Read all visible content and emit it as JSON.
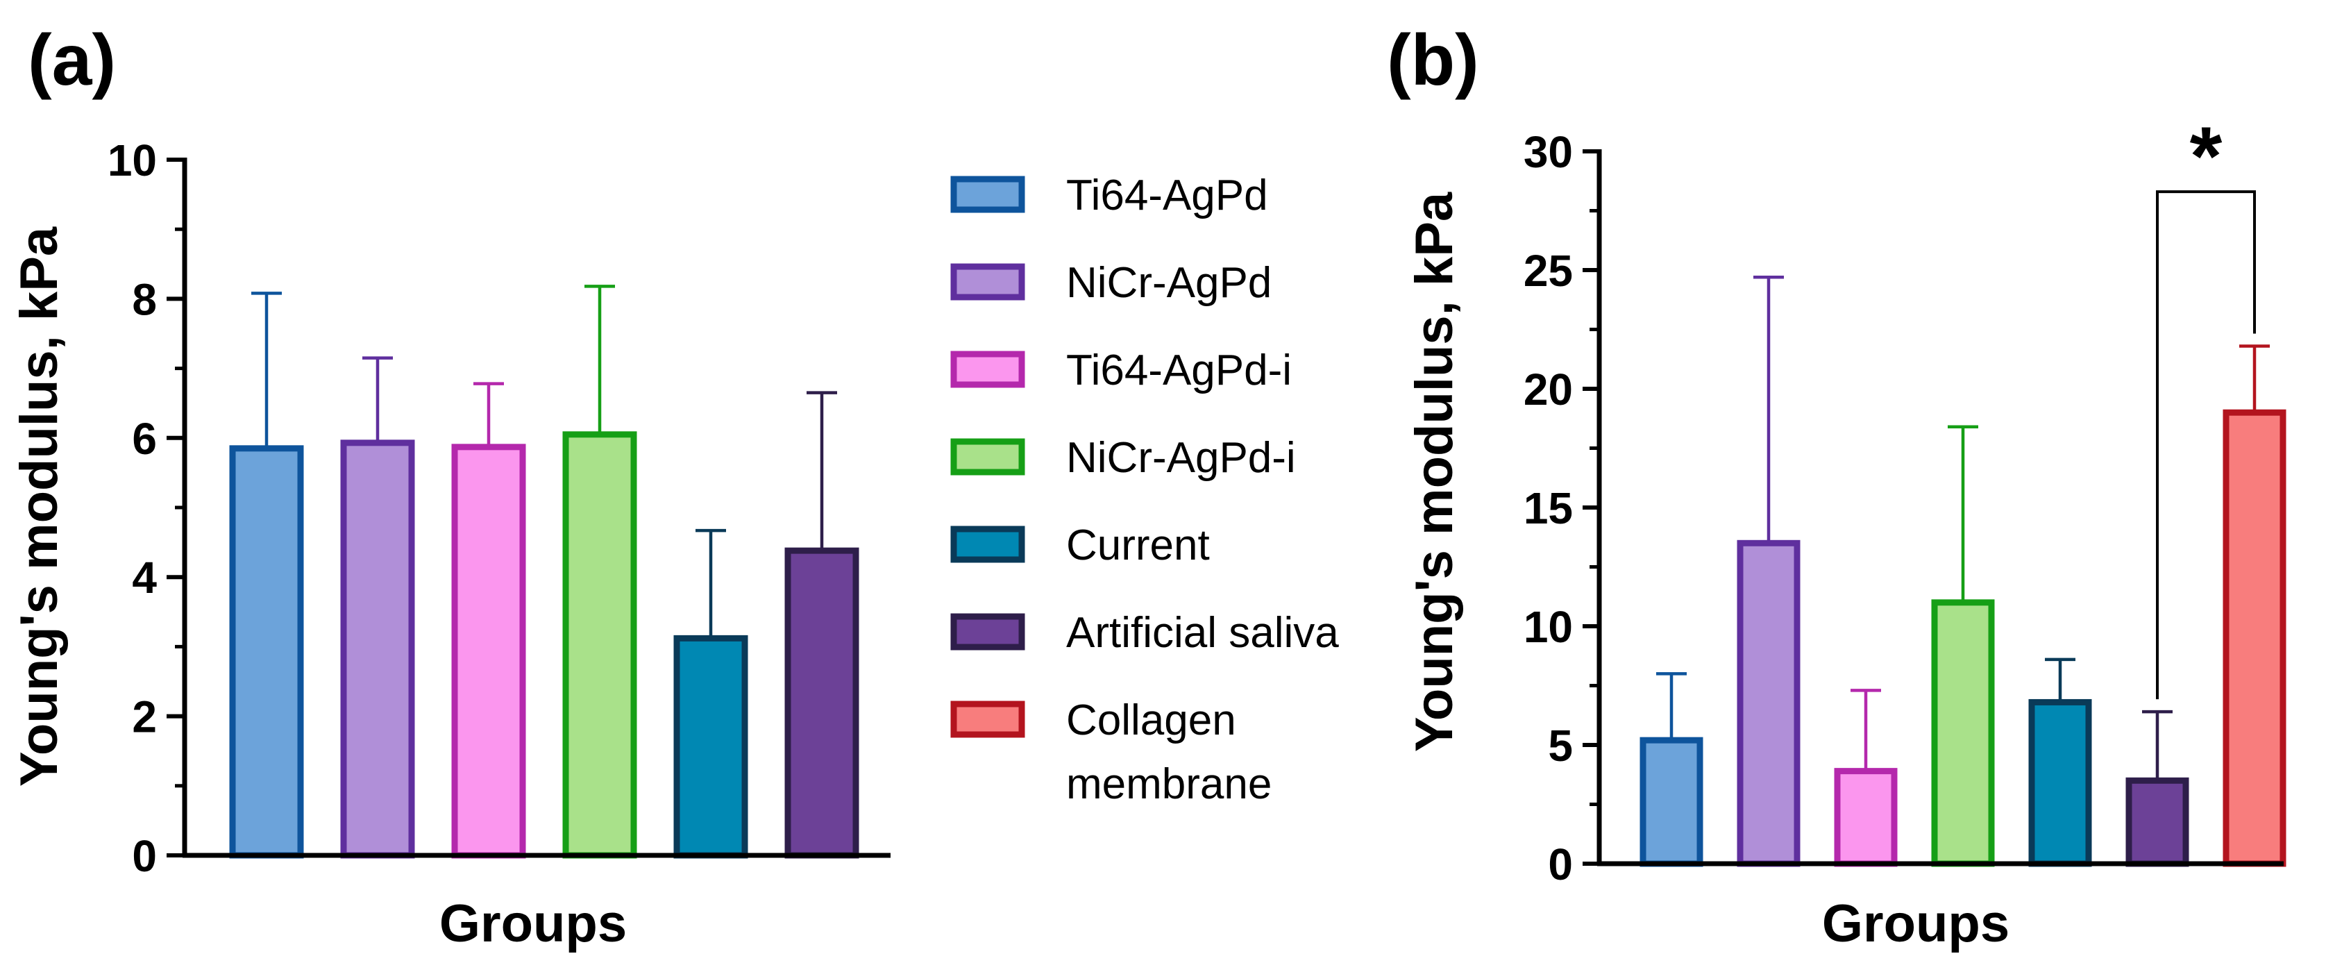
{
  "figure": {
    "panel_a_label": "(a)",
    "panel_b_label": "(b)"
  },
  "legend": [
    {
      "label": "Ti64-AgPd",
      "fill": "#6CA3DA",
      "stroke": "#0E549C"
    },
    {
      "label": "NiCr-AgPd",
      "fill": "#B08FD8",
      "stroke": "#5F2F9E"
    },
    {
      "label": "Ti64-AgPd-i",
      "fill": "#FB96EE",
      "stroke": "#B428AC"
    },
    {
      "label": "NiCr-AgPd-i",
      "fill": "#A9E18A",
      "stroke": "#169F16"
    },
    {
      "label": "Current",
      "fill": "#0088B3",
      "stroke": "#0A3A58"
    },
    {
      "label": "Artificial saliva",
      "fill": "#6C4197",
      "stroke": "#2E1E4A"
    },
    {
      "label": "Collagen membrane",
      "fill": "#F87D7D",
      "stroke": "#B3141E"
    }
  ],
  "chart_data": [
    {
      "panel": "(a)",
      "type": "bar",
      "title": "",
      "xlabel": "Groups",
      "ylabel": "Young's modulus, kPa",
      "ylim": [
        0,
        10
      ],
      "yticks": [
        0,
        2,
        4,
        6,
        8,
        10
      ],
      "ytick_labels": [
        "0",
        "2",
        "4",
        "6",
        "8",
        "10"
      ],
      "categories": [
        "Ti64-AgPd",
        "NiCr-AgPd",
        "Ti64-AgPd-i",
        "NiCr-AgPd-i",
        "Current",
        "Artificial saliva"
      ],
      "values": [
        5.85,
        5.93,
        5.87,
        6.05,
        3.12,
        4.38
      ],
      "error_upper": [
        8.08,
        7.15,
        6.78,
        8.18,
        4.67,
        6.65
      ],
      "significance": []
    },
    {
      "panel": "(b)",
      "type": "bar",
      "title": "",
      "xlabel": "Groups",
      "ylabel": "Young's modulus, kPa",
      "ylim": [
        0,
        30
      ],
      "yticks": [
        0,
        5,
        10,
        15,
        20,
        25,
        30
      ],
      "ytick_labels": [
        "0",
        "5",
        "10",
        "15",
        "20",
        "25",
        "30"
      ],
      "categories": [
        "Ti64-AgPd",
        "NiCr-AgPd",
        "Ti64-AgPd-i",
        "NiCr-AgPd-i",
        "Current",
        "Artificial saliva",
        "Collagen membrane"
      ],
      "values": [
        5.2,
        13.5,
        3.9,
        11.0,
        6.8,
        3.5,
        19.0
      ],
      "error_upper": [
        8.0,
        24.7,
        7.3,
        18.4,
        8.6,
        6.4,
        21.8
      ],
      "significance": [
        {
          "from": "Artificial saliva",
          "to": "Collagen membrane",
          "label": "*",
          "line_y": 28.3
        }
      ]
    }
  ]
}
